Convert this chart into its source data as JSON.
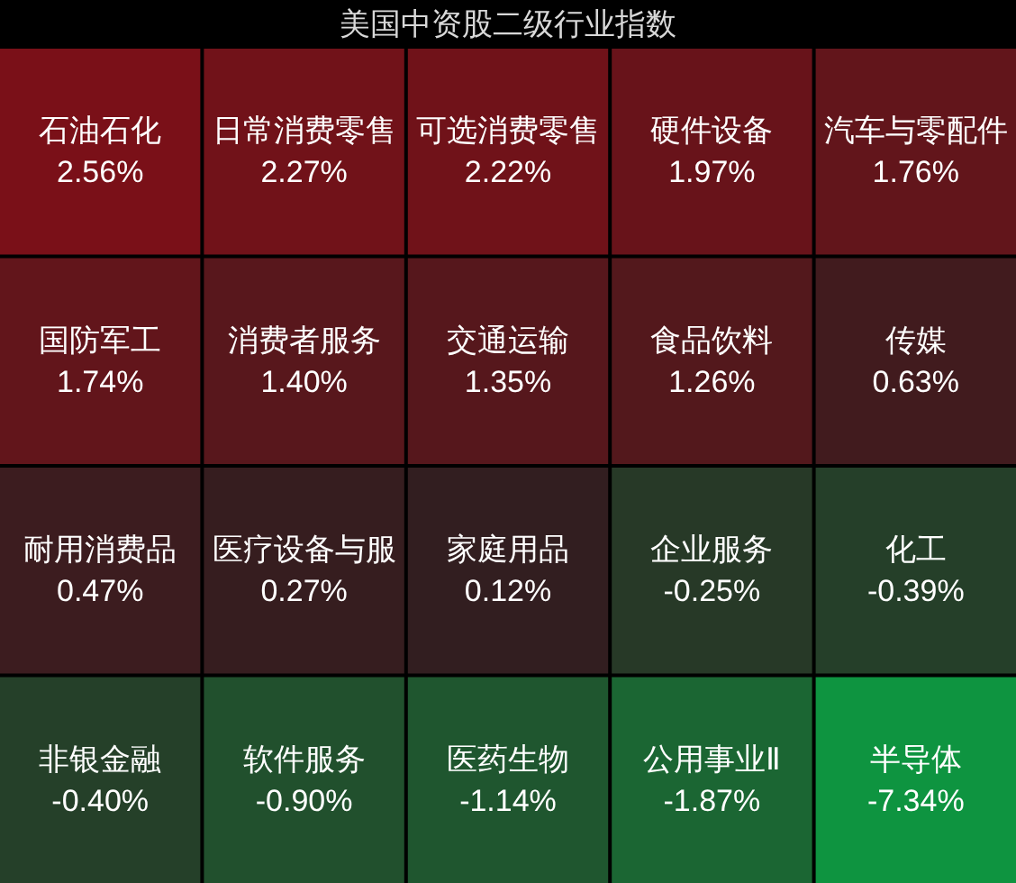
{
  "chart_data": {
    "type": "other",
    "title": "美国中资股二级行业指数",
    "categories": [
      "石油石化",
      "日常消费零售",
      "可选消费零售",
      "硬件设备",
      "汽车与零配件",
      "国防军工",
      "消费者服务",
      "交通运输",
      "食品饮料",
      "传媒",
      "耐用消费品",
      "医疗设备与服",
      "家庭用品",
      "企业服务",
      "化工",
      "非银金融",
      "软件服务",
      "医药生物",
      "公用事业Ⅱ",
      "半导体"
    ],
    "values": [
      2.56,
      2.27,
      2.22,
      1.97,
      1.76,
      1.74,
      1.4,
      1.35,
      1.26,
      0.63,
      0.47,
      0.27,
      0.12,
      -0.25,
      -0.39,
      -0.4,
      -0.9,
      -1.14,
      -1.87,
      -7.34
    ],
    "value_labels": [
      "2.56%",
      "2.27%",
      "2.22%",
      "1.97%",
      "1.76%",
      "1.74%",
      "1.40%",
      "1.35%",
      "1.26%",
      "0.63%",
      "0.47%",
      "0.27%",
      "0.12%",
      "-0.25%",
      "-0.39%",
      "-0.40%",
      "-0.90%",
      "-1.14%",
      "-1.87%",
      "-7.34%"
    ]
  }
}
